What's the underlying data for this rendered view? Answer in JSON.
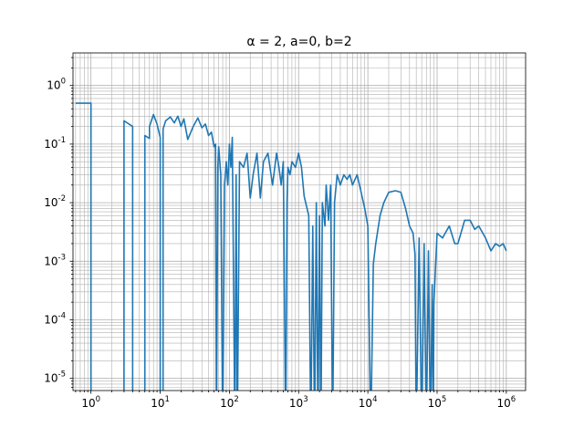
{
  "chart_data": {
    "type": "line",
    "title": "α = 2, a=0, b=2",
    "xlabel": "",
    "ylabel": "",
    "xscale": "log",
    "yscale": "log",
    "xlim": [
      0.55,
      1900000
    ],
    "ylim": [
      6.2e-06,
      3.6
    ],
    "grid": "major and minor",
    "colors": {
      "line": "#1f77b4",
      "grid": "#b0b0b0",
      "axes": "#000000"
    },
    "x_tick_labels": [
      "10^0",
      "10^1",
      "10^2",
      "10^3",
      "10^4",
      "10^5",
      "10^6"
    ],
    "y_tick_labels": [
      "10^-5",
      "10^-4",
      "10^-3",
      "10^-2",
      "10^-1",
      "10^0"
    ],
    "series": [
      {
        "points": [
          [
            0.6,
            0.5
          ],
          [
            1.0,
            0.5
          ],
          [
            1.0,
            1e-06
          ],
          [
            3.0,
            1e-06
          ],
          [
            3.0,
            0.25
          ],
          [
            4.0,
            0.2
          ],
          [
            4.0,
            1e-06
          ],
          [
            6.0,
            1e-06
          ],
          [
            6.0,
            0.14
          ],
          [
            7.0,
            0.125
          ],
          [
            7.0,
            0.2
          ],
          [
            8.0,
            0.32
          ],
          [
            9.0,
            0.22
          ],
          [
            10.0,
            0.13
          ],
          [
            10.0,
            1e-06
          ],
          [
            11.0,
            1e-06
          ],
          [
            11.0,
            0.18
          ],
          [
            12.0,
            0.25
          ],
          [
            14.0,
            0.29
          ],
          [
            16.0,
            0.23
          ],
          [
            18.0,
            0.3
          ],
          [
            20.0,
            0.2
          ],
          [
            22.0,
            0.27
          ],
          [
            25.0,
            0.12
          ],
          [
            30.0,
            0.2
          ],
          [
            35.0,
            0.28
          ],
          [
            40.0,
            0.19
          ],
          [
            45.0,
            0.22
          ],
          [
            50.0,
            0.14
          ],
          [
            55.0,
            0.16
          ],
          [
            60.0,
            0.09
          ],
          [
            63.0,
            0.1
          ],
          [
            65.0,
            1e-06
          ],
          [
            68.0,
            0.04
          ],
          [
            70.0,
            0.09
          ],
          [
            75.0,
            0.03
          ],
          [
            80.0,
            1e-06
          ],
          [
            85.0,
            0.02
          ],
          [
            90.0,
            0.05
          ],
          [
            95.0,
            0.02
          ],
          [
            100.0,
            0.1
          ],
          [
            105.0,
            0.04
          ],
          [
            110.0,
            0.13
          ],
          [
            120.0,
            1e-06
          ],
          [
            125.0,
            0.03
          ],
          [
            130.0,
            1e-06
          ],
          [
            140.0,
            0.05
          ],
          [
            160.0,
            0.04
          ],
          [
            180.0,
            0.07
          ],
          [
            200.0,
            0.012
          ],
          [
            220.0,
            0.03
          ],
          [
            250.0,
            0.07
          ],
          [
            280.0,
            0.012
          ],
          [
            310.0,
            0.05
          ],
          [
            360.0,
            0.07
          ],
          [
            420.0,
            0.02
          ],
          [
            480.0,
            0.07
          ],
          [
            520.0,
            0.04
          ],
          [
            560.0,
            0.02
          ],
          [
            600.0,
            0.05
          ],
          [
            650.0,
            1e-06
          ],
          [
            680.0,
            0.01
          ],
          [
            700.0,
            0.04
          ],
          [
            750.0,
            0.03
          ],
          [
            800.0,
            0.05
          ],
          [
            900.0,
            0.04
          ],
          [
            1000.0,
            0.07
          ],
          [
            1100.0,
            0.04
          ],
          [
            1200.0,
            0.013
          ],
          [
            1400.0,
            0.006
          ],
          [
            1500.0,
            1e-06
          ],
          [
            1600.0,
            0.004
          ],
          [
            1700.0,
            1e-06
          ],
          [
            1800.0,
            0.01
          ],
          [
            1900.0,
            1e-06
          ],
          [
            2000.0,
            0.006
          ],
          [
            2100.0,
            1e-06
          ],
          [
            2200.0,
            0.01
          ],
          [
            2400.0,
            0.004
          ],
          [
            2500.0,
            0.02
          ],
          [
            2700.0,
            0.005
          ],
          [
            2900.0,
            0.02
          ],
          [
            3100.0,
            1e-06
          ],
          [
            3300.0,
            0.01
          ],
          [
            3600.0,
            0.03
          ],
          [
            4000.0,
            0.02
          ],
          [
            4500.0,
            0.03
          ],
          [
            5000.0,
            0.025
          ],
          [
            5500.0,
            0.03
          ],
          [
            6000.0,
            0.02
          ],
          [
            7000.0,
            0.03
          ],
          [
            8000.0,
            0.015
          ],
          [
            9000.0,
            0.008
          ],
          [
            10000.0,
            0.004
          ],
          [
            11000.0,
            1e-06
          ],
          [
            12000.0,
            0.0009
          ],
          [
            13000.0,
            0.002
          ],
          [
            15000.0,
            0.006
          ],
          [
            17000.0,
            0.01
          ],
          [
            20000.0,
            0.015
          ],
          [
            25000.0,
            0.016
          ],
          [
            30000.0,
            0.015
          ],
          [
            35000.0,
            0.008
          ],
          [
            40000.0,
            0.004
          ],
          [
            45000.0,
            0.003
          ],
          [
            48000.0,
            0.0013
          ],
          [
            50000.0,
            1e-06
          ],
          [
            55000.0,
            0.0025
          ],
          [
            60000.0,
            1e-06
          ],
          [
            65000.0,
            0.002
          ],
          [
            70000.0,
            1e-06
          ],
          [
            75000.0,
            0.0015
          ],
          [
            80000.0,
            1e-06
          ],
          [
            85000.0,
            0.0004
          ],
          [
            88000.0,
            1e-06
          ],
          [
            90000.0,
            0.0002
          ],
          [
            100000.0,
            0.003
          ],
          [
            120000.0,
            0.0025
          ],
          [
            150000.0,
            0.004
          ],
          [
            180000.0,
            0.002
          ],
          [
            200000.0,
            0.002
          ],
          [
            250000.0,
            0.005
          ],
          [
            300000.0,
            0.005
          ],
          [
            350000.0,
            0.0035
          ],
          [
            400000.0,
            0.004
          ],
          [
            500000.0,
            0.0025
          ],
          [
            600000.0,
            0.0015
          ],
          [
            700000.0,
            0.002
          ],
          [
            800000.0,
            0.0018
          ],
          [
            900000.0,
            0.002
          ],
          [
            1000000.0,
            0.0015
          ]
        ]
      }
    ]
  }
}
